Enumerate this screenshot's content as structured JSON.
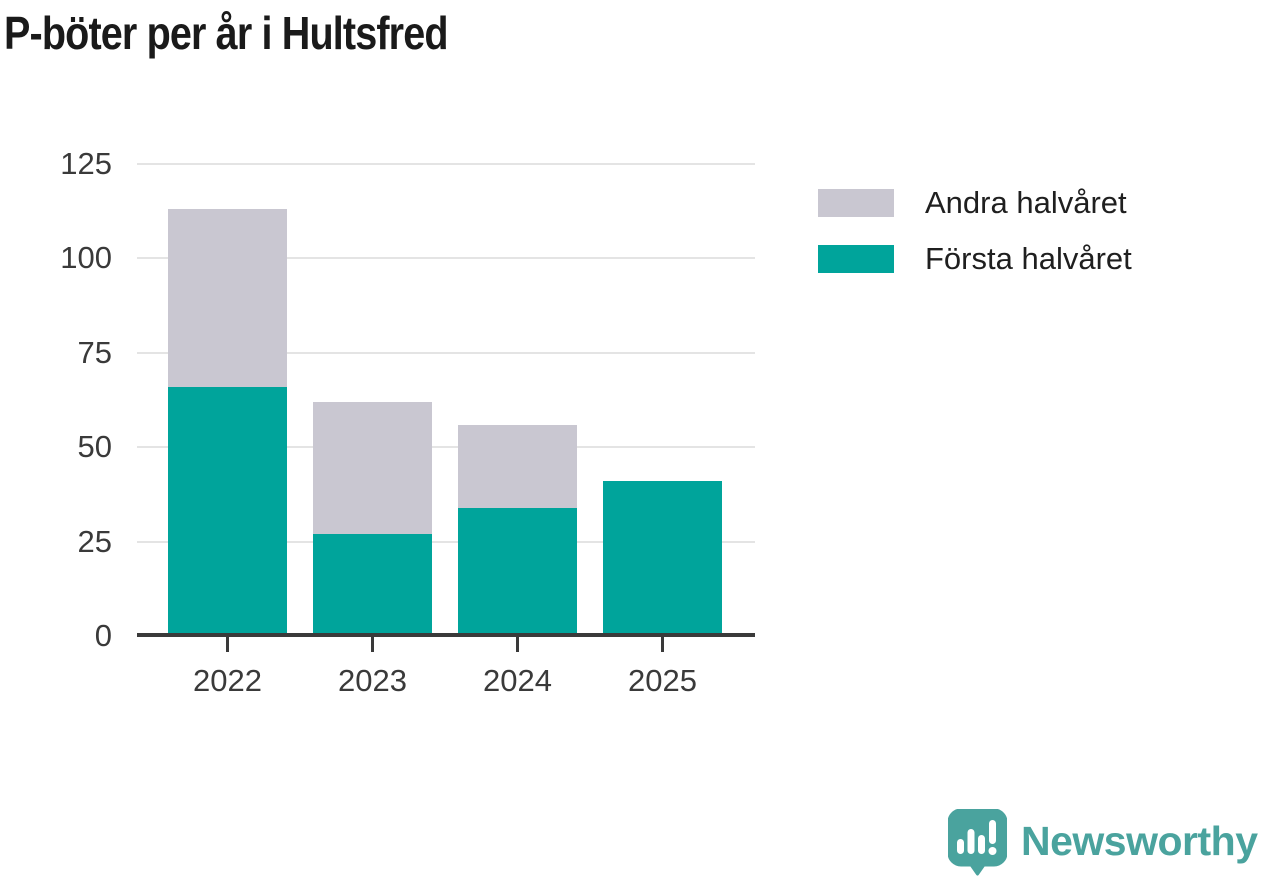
{
  "title": "P-böter per år i Hultsfred",
  "legend": [
    {
      "label": "Andra halvåret",
      "color": "#c9c7d1"
    },
    {
      "label": "Första halvåret",
      "color": "#00a49b"
    }
  ],
  "branding": {
    "name": "Newsworthy",
    "color": "#4aa39e",
    "icon": "newsworthy-speech-bubble-bar-chart-icon"
  },
  "chart_data": {
    "type": "bar",
    "stacked": true,
    "title": "P-böter per år i Hultsfred",
    "categories": [
      "2022",
      "2023",
      "2024",
      "2025"
    ],
    "series": [
      {
        "name": "Första halvåret",
        "color": "#00a49b",
        "values": [
          66,
          27,
          34,
          41
        ]
      },
      {
        "name": "Andra halvåret",
        "color": "#c9c7d1",
        "values": [
          47,
          35,
          22,
          0
        ]
      }
    ],
    "totals": [
      113,
      62,
      56,
      41
    ],
    "xlabel": "",
    "ylabel": "",
    "ylim": [
      0,
      125
    ],
    "yticks": [
      0,
      25,
      50,
      75,
      100,
      125
    ],
    "grid": true,
    "legend_position": "right-top"
  }
}
